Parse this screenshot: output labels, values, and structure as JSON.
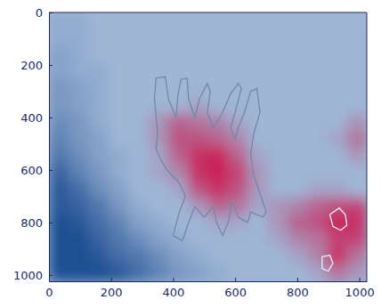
{
  "chart_data": {
    "type": "heatmap",
    "xlim": [
      0,
      1024
    ],
    "ylim": [
      1024,
      0
    ],
    "xticks": [
      0,
      200,
      400,
      600,
      800,
      1000
    ],
    "yticks": [
      0,
      200,
      400,
      600,
      800,
      1000
    ],
    "zlim": [
      -1,
      1
    ],
    "x_edges": [
      0,
      64,
      128,
      192,
      256,
      320,
      384,
      448,
      512,
      576,
      640,
      704,
      768,
      832,
      896,
      960,
      1024
    ],
    "y_edges": [
      0,
      64,
      128,
      192,
      256,
      320,
      384,
      448,
      512,
      576,
      640,
      704,
      768,
      832,
      896,
      960,
      1024
    ],
    "cells": [
      [
        -0.1,
        -0.1,
        0,
        0,
        0,
        0,
        0,
        0,
        0,
        0,
        0,
        0,
        0,
        0,
        0,
        0
      ],
      [
        -0.1,
        -0.1,
        0,
        0,
        0,
        0,
        0,
        0,
        0,
        0,
        0,
        0,
        0,
        0,
        0,
        0
      ],
      [
        -0.2,
        -0.1,
        0,
        0,
        0,
        0,
        0,
        0,
        0,
        0,
        0,
        0,
        0,
        0,
        0,
        0
      ],
      [
        -0.2,
        -0.1,
        -0.1,
        0,
        0,
        0,
        0,
        0,
        0,
        0,
        0,
        0,
        0,
        0,
        0,
        0
      ],
      [
        -0.3,
        -0.2,
        -0.1,
        0,
        0,
        0,
        0,
        0,
        0,
        0,
        0,
        0,
        0,
        0,
        0,
        0
      ],
      [
        -0.3,
        -0.2,
        -0.1,
        0,
        0,
        0,
        0,
        0.1,
        0,
        0,
        0,
        0,
        0,
        0,
        0,
        0
      ],
      [
        -0.4,
        -0.3,
        -0.1,
        0,
        0,
        0.2,
        0.5,
        0.4,
        0.3,
        0.1,
        0,
        0,
        0,
        0,
        0,
        0.2
      ],
      [
        -0.5,
        -0.3,
        -0.2,
        0,
        0,
        0.2,
        0.6,
        0.6,
        0.5,
        0.3,
        0,
        0,
        0,
        0,
        0.1,
        0.4
      ],
      [
        -0.6,
        -0.4,
        -0.2,
        -0.1,
        0,
        0.1,
        0.5,
        0.8,
        0.9,
        0.5,
        0.1,
        0,
        0,
        0,
        0,
        0.2
      ],
      [
        -0.8,
        -0.5,
        -0.3,
        -0.1,
        0,
        0.1,
        0.3,
        0.8,
        0.9,
        0.7,
        0.2,
        0,
        0,
        0,
        0,
        0
      ],
      [
        -0.9,
        -0.7,
        -0.4,
        -0.2,
        0,
        0,
        0.1,
        0.6,
        0.8,
        0.6,
        0.2,
        0,
        0,
        0.1,
        0.1,
        0
      ],
      [
        -0.9,
        -0.8,
        -0.6,
        -0.3,
        -0.1,
        0,
        0,
        0.2,
        0.5,
        0.4,
        0.1,
        0.2,
        0.3,
        0.5,
        0.6,
        0.7
      ],
      [
        -1,
        -0.9,
        -0.7,
        -0.5,
        -0.2,
        -0.1,
        0,
        0,
        0.1,
        0.1,
        0,
        0.2,
        0.5,
        0.6,
        0.9,
        0.8
      ],
      [
        -1,
        -1,
        -0.8,
        -0.6,
        -0.4,
        -0.2,
        -0.1,
        0,
        0,
        0,
        0,
        0.1,
        0.3,
        0.4,
        0.7,
        0.7
      ],
      [
        -1,
        -1,
        -0.9,
        -0.7,
        -0.6,
        -0.4,
        -0.2,
        -0.1,
        0,
        0,
        0,
        0,
        0.1,
        0.3,
        0.8,
        0.4
      ],
      [
        -1,
        -1,
        -1,
        -0.9,
        -0.7,
        -0.5,
        -0.3,
        -0.2,
        -0.1,
        0,
        0,
        0,
        0,
        0.1,
        0.4,
        0.2
      ]
    ],
    "contours": [
      {
        "color": "#6f8aa8",
        "points": [
          [
            350,
            460
          ],
          [
            340,
            330
          ],
          [
            345,
            250
          ],
          [
            375,
            245
          ],
          [
            385,
            330
          ],
          [
            410,
            400
          ],
          [
            415,
            320
          ],
          [
            425,
            255
          ],
          [
            445,
            250
          ],
          [
            450,
            330
          ],
          [
            470,
            400
          ],
          [
            485,
            330
          ],
          [
            510,
            270
          ],
          [
            520,
            300
          ],
          [
            510,
            380
          ],
          [
            530,
            440
          ],
          [
            560,
            380
          ],
          [
            585,
            310
          ],
          [
            610,
            270
          ],
          [
            620,
            290
          ],
          [
            600,
            380
          ],
          [
            585,
            440
          ],
          [
            600,
            480
          ],
          [
            610,
            440
          ],
          [
            630,
            380
          ],
          [
            650,
            300
          ],
          [
            670,
            290
          ],
          [
            680,
            380
          ],
          [
            660,
            460
          ],
          [
            650,
            540
          ],
          [
            660,
            620
          ],
          [
            680,
            690
          ],
          [
            700,
            760
          ],
          [
            690,
            780
          ],
          [
            650,
            760
          ],
          [
            640,
            800
          ],
          [
            610,
            780
          ],
          [
            590,
            720
          ],
          [
            580,
            790
          ],
          [
            560,
            850
          ],
          [
            540,
            800
          ],
          [
            530,
            740
          ],
          [
            500,
            780
          ],
          [
            470,
            740
          ],
          [
            450,
            800
          ],
          [
            430,
            870
          ],
          [
            400,
            850
          ],
          [
            420,
            760
          ],
          [
            440,
            700
          ],
          [
            420,
            650
          ],
          [
            380,
            600
          ],
          [
            360,
            560
          ],
          [
            345,
            520
          ]
        ]
      },
      {
        "color": "#e8eef6",
        "points": [
          [
            905,
            770
          ],
          [
            935,
            745
          ],
          [
            955,
            770
          ],
          [
            960,
            810
          ],
          [
            940,
            830
          ],
          [
            915,
            815
          ]
        ]
      },
      {
        "color": "#e8eef6",
        "points": [
          [
            880,
            930
          ],
          [
            905,
            925
          ],
          [
            915,
            955
          ],
          [
            900,
            985
          ],
          [
            880,
            975
          ]
        ]
      }
    ]
  }
}
